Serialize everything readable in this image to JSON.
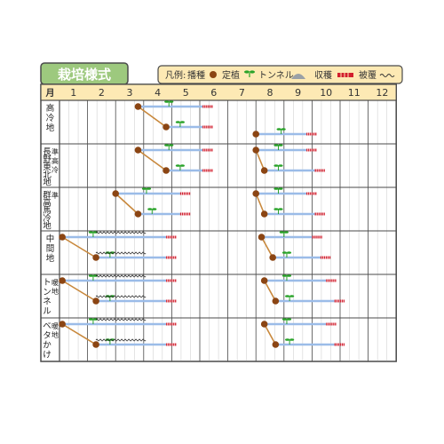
{
  "title": "栽培様式",
  "legend": {
    "prefix": "凡例:",
    "sowing": "播種",
    "planting": "定植",
    "tunnel": "トンネル",
    "harvest": "収穫",
    "mulch": "被覆"
  },
  "month_header": "月",
  "months": [
    "1",
    "2",
    "3",
    "4",
    "5",
    "6",
    "7",
    "8",
    "9",
    "10",
    "11",
    "12"
  ],
  "colors": {
    "frame": "#4a4a4a",
    "header_fill": "#fde9b4",
    "title_fill": "#9dc97e",
    "plan_line": "#9bbce8",
    "sow_dot": "#8b4513",
    "sow_link": "#c8883c",
    "seedling": "#29a329",
    "harvest": "#d21f2e",
    "grid": "#c8c8c8"
  },
  "regions": [
    {
      "label": [
        "高",
        "冷",
        "地"
      ],
      "schedules": [
        {
          "sow": 3.8,
          "plant": 4.8,
          "end": 6.1,
          "harvest": [
            6.1,
            6.4
          ]
        },
        {
          "sow": 8.0,
          "plant": 8.5,
          "end": 9.8,
          "harvest": [
            9.8,
            10.1
          ]
        }
      ]
    },
    {
      "label": [
        "長",
        "野",
        "東",
        "北",
        "地"
      ],
      "extra": [
        "準",
        "高",
        "冷"
      ],
      "schedules": [
        {
          "sow": 3.8,
          "plant": 4.8,
          "end": 6.1,
          "harvest": [
            6.1,
            6.4
          ]
        },
        {
          "sow": 8.0,
          "plant": 8.3,
          "end": 9.8,
          "harvest": [
            9.8,
            10.1
          ]
        }
      ]
    },
    {
      "label": [
        "群",
        "高",
        "馬",
        "冷",
        "地"
      ],
      "extra": [
        "準"
      ],
      "schedules": [
        {
          "sow": 3.0,
          "plant": 3.8,
          "end": 5.3,
          "harvest": [
            5.3,
            5.6
          ]
        },
        {
          "sow": 8.0,
          "plant": 8.3,
          "end": 9.8,
          "harvest": [
            9.8,
            10.1
          ]
        }
      ]
    },
    {
      "label": [
        "中",
        "間",
        "地"
      ],
      "schedules": [
        {
          "sow": 1.1,
          "plant": 2.3,
          "end": 4.8,
          "harvest": [
            4.8,
            5.1
          ],
          "mulch": [
            2.3,
            4.0
          ],
          "tunnel_plant": 2.4
        },
        {
          "sow": 8.2,
          "plant": 8.6,
          "end": 10.0,
          "harvest": [
            10.0,
            10.3
          ]
        }
      ]
    },
    {
      "label": [
        "ト",
        "ン",
        "ネ",
        "ル"
      ],
      "extra": [
        "暖",
        "地"
      ],
      "schedules": [
        {
          "sow": 1.1,
          "plant": 2.3,
          "end": 4.8,
          "harvest": [
            4.8,
            5.1
          ],
          "mulch": [
            2.3,
            4.0
          ],
          "tunnel_plant": 2.4
        },
        {
          "sow": 8.3,
          "plant": 8.7,
          "end": 10.5,
          "harvest": [
            10.5,
            10.8
          ]
        }
      ]
    },
    {
      "label": [
        "ベ",
        "タ",
        "か",
        "け"
      ],
      "extra": [
        "暖",
        "地"
      ],
      "schedules": [
        {
          "sow": 1.1,
          "plant": 2.3,
          "end": 4.8,
          "harvest": [
            4.8,
            5.1
          ],
          "mulch": [
            2.3,
            4.0
          ],
          "tunnel_plant": 2.4
        },
        {
          "sow": 8.3,
          "plant": 8.7,
          "end": 10.5,
          "harvest": [
            10.5,
            10.8
          ]
        }
      ]
    }
  ]
}
